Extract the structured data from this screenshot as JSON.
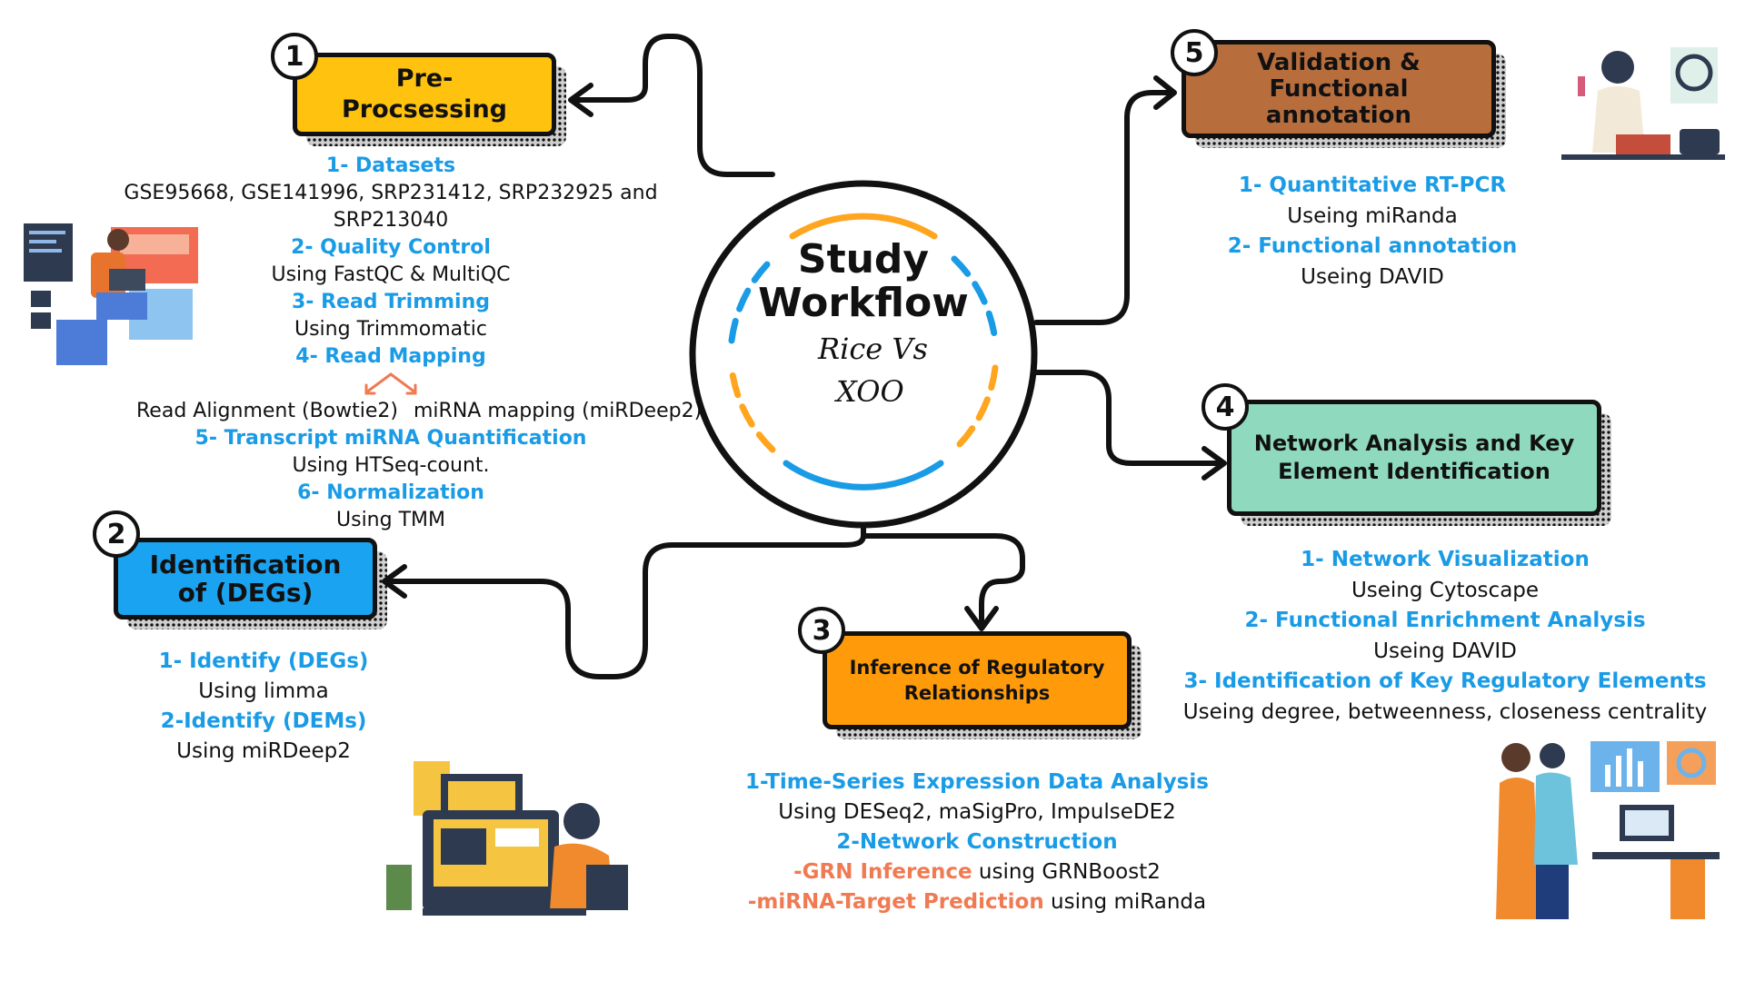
{
  "center": {
    "title_line1": "Study",
    "title_line2": "Workflow",
    "sub_line1": "Rice Vs",
    "sub_line2": "XOO"
  },
  "steps": [
    {
      "num": "1",
      "title": "Pre-\nProcsessing",
      "color": "#ffc20e"
    },
    {
      "num": "2",
      "title": "Identification\nof (DEGs)",
      "color": "#1aa3f0"
    },
    {
      "num": "3",
      "title": "Inference of Regulatory\nRelationships",
      "color": "#ff9b0a"
    },
    {
      "num": "4",
      "title": "Network Analysis and Key\nElement Identification",
      "color": "#8fd9bf"
    },
    {
      "num": "5",
      "title": "Validation &\nFunctional\nannotation",
      "color": "#b86e3c"
    }
  ],
  "preprocessing": {
    "h1": "1- Datasets",
    "t1": "GSE95668, GSE141996, SRP231412, SRP232925 and SRP213040",
    "h2": "2- Quality Control",
    "t2": "Using FastQC & MultiQC",
    "h3": "3- Read Trimming",
    "t3": "Using Trimmomatic",
    "h4": "4- Read Mapping",
    "t4a": "Read Alignment (Bowtie2)",
    "t4b": "miRNA mapping (miRDeep2)",
    "h5": "5- Transcript miRNA  Quantification",
    "t5": "Using HTSeq-count.",
    "h6": "6- Normalization",
    "t6": "Using TMM"
  },
  "deg": {
    "h1": "1- Identify  (DEGs)",
    "t1": "Using limma",
    "h2": "2-Identify (DEMs)",
    "t2": "Using miRDeep2"
  },
  "inference": {
    "h1": "1-Time-Series Expression Data Analysis",
    "t1": "Using DESeq2, maSigPro, ImpulseDE2",
    "h2": "2-Network Construction",
    "o1": "-GRN Inference",
    "t2": " using GRNBoost2",
    "o2": "-miRNA-Target Prediction",
    "t3": " using miRanda"
  },
  "network": {
    "h1": "1- Network Visualization",
    "t1": "Useing Cytoscape",
    "h2": "2- Functional Enrichment Analysis",
    "t2": "Useing DAVID",
    "h3": "3- Identification of Key Regulatory Elements",
    "t3": "Useing degree, betweenness, closeness centrality"
  },
  "validation": {
    "h1": "1- Quantitative RT-PCR",
    "t1": "Useing miRanda",
    "h2": "2- Functional annotation",
    "t2": "Useing DAVID"
  },
  "colors": {
    "heading_blue": "#1a9be6",
    "accent_orange": "#f07a52",
    "ring_blue": "#1a9be6",
    "ring_orange": "#ffa51f"
  }
}
